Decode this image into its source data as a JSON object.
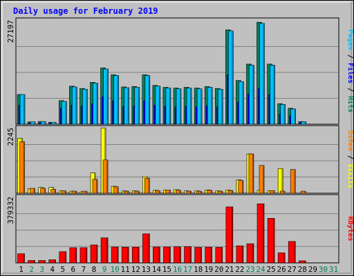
{
  "chart_data": {
    "type": "bar",
    "title": "Daily usage for February 2019",
    "colors": {
      "hits": "#00805c",
      "files": "#0000ff",
      "pages": "#00c0ff",
      "visits": "#ffff00",
      "sites": "#ff8000",
      "kbytes": "#ff0000",
      "title": "#0000ff",
      "background": "#c0c0c0",
      "weekend_day_label": "#00805c"
    },
    "days": [
      1,
      2,
      3,
      4,
      5,
      6,
      7,
      8,
      9,
      10,
      11,
      12,
      13,
      14,
      15,
      16,
      17,
      18,
      19,
      20,
      21,
      22,
      23,
      24,
      25,
      26,
      27,
      28,
      29,
      30,
      31
    ],
    "weekend_days": [
      2,
      3,
      9,
      10,
      16,
      17,
      23,
      24,
      30,
      31
    ],
    "panels": [
      {
        "id": "hits-files-pages",
        "ylabel_parts": [
          {
            "text": "Pages",
            "color": "#00c0ff"
          },
          {
            "text": " / ",
            "color": "#000000"
          },
          {
            "text": "Files",
            "color": "#0000ff"
          },
          {
            "text": " / ",
            "color": "#000000"
          },
          {
            "text": "Hits",
            "color": "#00805c"
          }
        ],
        "max_label": "27197",
        "ymax": 27197,
        "series": [
          {
            "name": "Hits",
            "values": [
              7800,
              600,
              700,
              500,
              6200,
              10000,
              9400,
              11000,
              14800,
              13000,
              9800,
              9900,
              13000,
              10200,
              9700,
              9500,
              9700,
              9500,
              9900,
              9400,
              24800,
              11500,
              15800,
              26800,
              15800,
              5400,
              4200,
              700,
              0,
              0,
              0
            ]
          },
          {
            "name": "Files",
            "values": [
              5000,
              400,
              450,
              350,
              4200,
              5000,
              4800,
              5400,
              7200,
              6200,
              4700,
              4800,
              6200,
              5000,
              4700,
              4600,
              4700,
              4600,
              4800,
              4600,
              13000,
              5800,
              7900,
              9400,
              7800,
              2600,
              2200,
              450,
              0,
              0,
              0
            ]
          },
          {
            "name": "Pages",
            "values": [
              7800,
              600,
              700,
              500,
              6000,
              9800,
              9200,
              10800,
              14500,
              12800,
              9600,
              9700,
              12800,
              10000,
              9500,
              9300,
              9500,
              9300,
              9700,
              9200,
              24500,
              11200,
              15500,
              26500,
              15500,
              5200,
              4000,
              650,
              0,
              0,
              0
            ]
          }
        ]
      },
      {
        "id": "visits-sites",
        "ylabel_parts": [
          {
            "text": "Sites",
            "color": "#ff8000"
          },
          {
            "text": " / ",
            "color": "#000000"
          },
          {
            "text": "Visits",
            "color": "#ffff00"
          }
        ],
        "max_label": "2245",
        "ymax": 2245,
        "series": [
          {
            "name": "Visits",
            "values": [
              1900,
              160,
              200,
              200,
              80,
              70,
              50,
              700,
              2250,
              240,
              80,
              80,
              570,
              100,
              110,
              120,
              80,
              80,
              110,
              80,
              110,
              460,
              1360,
              100,
              80,
              850,
              0,
              0,
              0,
              0,
              0
            ]
          },
          {
            "name": "Sites",
            "values": [
              1780,
              170,
              170,
              130,
              80,
              70,
              70,
              480,
              1150,
              220,
              70,
              70,
              520,
              90,
              110,
              100,
              70,
              70,
              100,
              70,
              90,
              440,
              1360,
              960,
              90,
              70,
              820,
              70,
              0,
              0,
              0
            ]
          }
        ]
      },
      {
        "id": "kbytes",
        "ylabel_parts": [
          {
            "text": "KBytes",
            "color": "#ff0000"
          }
        ],
        "max_label": "379332",
        "ymax": 379332,
        "series": [
          {
            "name": "KBytes",
            "values": [
              53000,
              14000,
              14000,
              18000,
              65000,
              88000,
              88000,
              104000,
              145000,
              92000,
              91000,
              91000,
              168000,
              92000,
              92000,
              93000,
              94000,
              90000,
              91000,
              90000,
              324000,
              99000,
              111000,
              342000,
              258000,
              58000,
              124000,
              12000,
              0,
              0,
              0
            ]
          }
        ]
      }
    ]
  }
}
